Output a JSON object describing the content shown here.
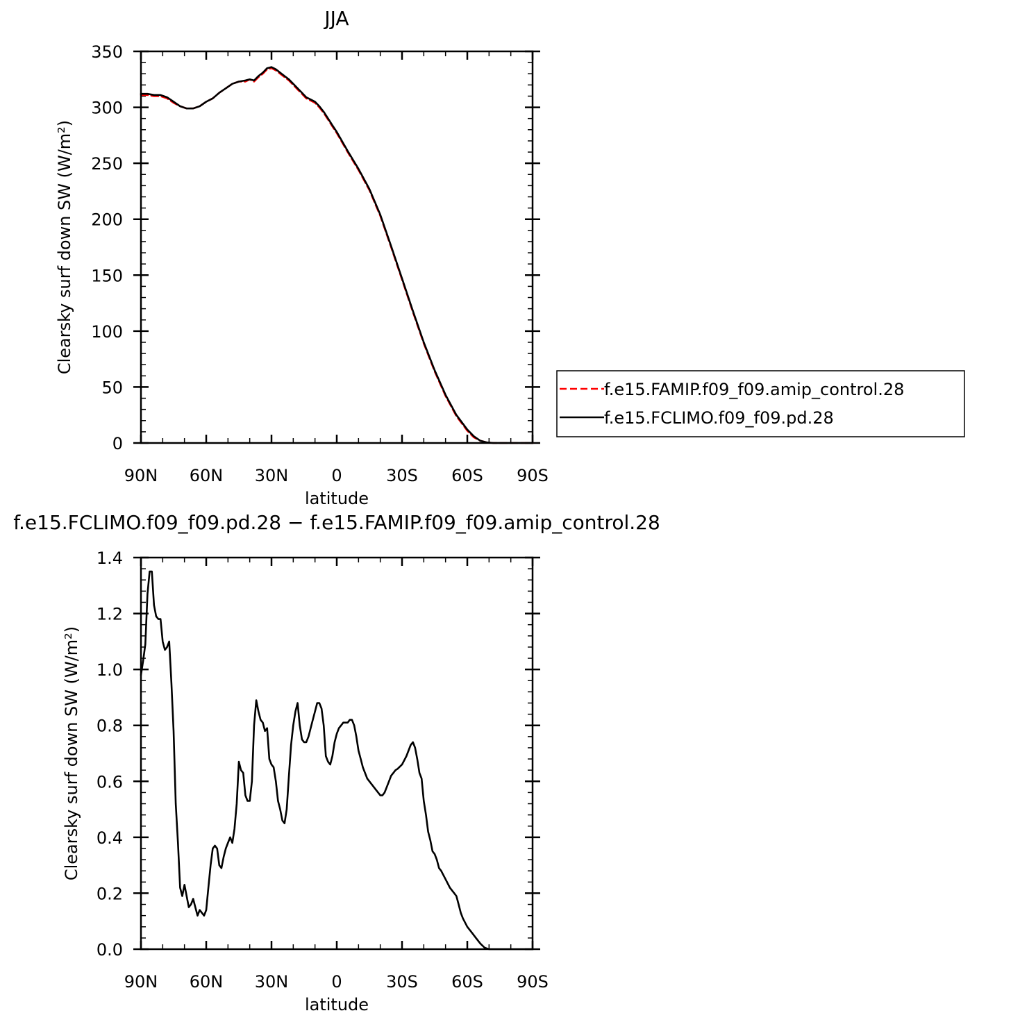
{
  "chart_data": [
    {
      "type": "line",
      "title": "JJA",
      "xlabel": "latitude",
      "ylabel": "Clearsky surf down SW (W/m²)",
      "xlim": [
        90,
        -90
      ],
      "ylim": [
        0,
        350
      ],
      "x_ticks": [
        {
          "value": 90,
          "label": "90N"
        },
        {
          "value": 60,
          "label": "60N"
        },
        {
          "value": 30,
          "label": "30N"
        },
        {
          "value": 0,
          "label": "0"
        },
        {
          "value": -30,
          "label": "30S"
        },
        {
          "value": -60,
          "label": "60S"
        },
        {
          "value": -90,
          "label": "90S"
        }
      ],
      "y_ticks": [
        {
          "value": 0,
          "label": "0"
        },
        {
          "value": 50,
          "label": "50"
        },
        {
          "value": 100,
          "label": "100"
        },
        {
          "value": 150,
          "label": "150"
        },
        {
          "value": 200,
          "label": "200"
        },
        {
          "value": 250,
          "label": "250"
        },
        {
          "value": 300,
          "label": "300"
        },
        {
          "value": 350,
          "label": "350"
        }
      ],
      "y_minor_step": 10,
      "x_minor_step": 10,
      "legend": "right",
      "series": [
        {
          "name": "f.e15.FAMIP.f09_f09.amip_control.28",
          "color": "#ff0000",
          "style": "dashed",
          "x": [
            90,
            87,
            84,
            81,
            78,
            75,
            72,
            69,
            66,
            63,
            60,
            57,
            54,
            51,
            48,
            45,
            42,
            40,
            38,
            36,
            34,
            32,
            30,
            28,
            26,
            24,
            22,
            20,
            18,
            16,
            14,
            12,
            10,
            8,
            6,
            4,
            2,
            0,
            -5,
            -10,
            -15,
            -20,
            -25,
            -30,
            -35,
            -40,
            -45,
            -50,
            -55,
            -60,
            -63,
            -66,
            -69,
            -72,
            -75,
            -78,
            -81,
            -84,
            -87,
            -90
          ],
          "y": [
            311,
            311,
            310,
            310,
            308,
            304,
            301,
            299,
            299,
            301,
            305,
            308,
            313,
            317,
            321,
            323,
            323,
            325,
            323,
            327,
            330,
            334,
            335,
            333,
            330,
            327,
            324,
            320,
            316,
            312,
            308,
            306,
            304,
            300,
            295,
            289,
            283,
            277,
            260,
            244,
            226,
            203,
            175,
            146,
            117,
            89,
            64,
            42,
            24,
            11,
            5,
            2,
            0.5,
            0,
            0,
            0,
            0,
            0,
            0,
            0
          ]
        },
        {
          "name": "f.e15.FCLIMO.f09_f09.pd.28",
          "color": "#000000",
          "style": "solid",
          "x": [
            90,
            87,
            84,
            81,
            78,
            75,
            72,
            69,
            66,
            63,
            60,
            57,
            54,
            51,
            48,
            45,
            42,
            40,
            38,
            36,
            34,
            32,
            30,
            28,
            26,
            24,
            22,
            20,
            18,
            16,
            14,
            12,
            10,
            8,
            6,
            4,
            2,
            0,
            -5,
            -10,
            -15,
            -20,
            -25,
            -30,
            -35,
            -40,
            -45,
            -50,
            -55,
            -60,
            -63,
            -66,
            -69,
            -72,
            -75,
            -78,
            -81,
            -84,
            -87,
            -90
          ],
          "y": [
            312,
            312,
            311,
            311,
            309,
            305,
            301,
            299,
            299,
            301,
            305,
            308,
            313,
            317,
            321,
            323,
            324,
            325,
            324,
            328,
            331,
            335,
            336,
            334,
            331,
            328,
            325,
            321,
            317,
            313,
            309,
            307,
            305,
            301,
            296,
            290,
            284,
            278,
            261,
            245,
            227,
            204,
            176,
            147,
            118,
            90,
            65,
            43,
            25,
            12,
            6,
            2,
            0.5,
            0,
            0,
            0,
            0,
            0,
            0,
            0
          ]
        }
      ]
    },
    {
      "type": "line",
      "title": "f.e15.FCLIMO.f09_f09.pd.28 − f.e15.FAMIP.f09_f09.amip_control.28",
      "xlabel": "latitude",
      "ylabel": "Clearsky surf down SW (W/m²)",
      "xlim": [
        90,
        -90
      ],
      "ylim": [
        0.0,
        1.4
      ],
      "x_ticks": [
        {
          "value": 90,
          "label": "90N"
        },
        {
          "value": 60,
          "label": "60N"
        },
        {
          "value": 30,
          "label": "30N"
        },
        {
          "value": 0,
          "label": "0"
        },
        {
          "value": -30,
          "label": "30S"
        },
        {
          "value": -60,
          "label": "60S"
        },
        {
          "value": -90,
          "label": "90S"
        }
      ],
      "y_ticks": [
        {
          "value": 0.0,
          "label": "0.0"
        },
        {
          "value": 0.2,
          "label": "0.2"
        },
        {
          "value": 0.4,
          "label": "0.4"
        },
        {
          "value": 0.6,
          "label": "0.6"
        },
        {
          "value": 0.8,
          "label": "0.8"
        },
        {
          "value": 1.0,
          "label": "1.0"
        },
        {
          "value": 1.2,
          "label": "1.2"
        },
        {
          "value": 1.4,
          "label": "1.4"
        }
      ],
      "y_minor_step": 0.04,
      "x_minor_step": 10,
      "series": [
        {
          "color": "#000000",
          "style": "solid",
          "x": [
            90,
            89,
            88,
            87,
            86,
            85.5,
            85,
            84,
            83,
            82,
            81,
            80,
            79,
            78,
            77,
            76,
            75,
            74,
            73,
            72,
            71,
            70,
            69,
            68,
            67,
            66,
            65,
            64,
            63,
            62,
            61,
            60,
            59,
            58,
            57,
            56,
            55,
            54,
            53,
            52,
            51,
            50,
            49,
            48,
            47,
            46,
            45,
            44,
            43,
            42,
            41,
            40,
            39,
            38,
            37,
            36,
            35,
            34,
            33,
            32,
            31,
            30,
            29,
            28,
            27,
            26,
            25,
            24,
            23,
            22,
            21,
            20,
            19,
            18,
            17,
            16,
            15,
            14,
            13,
            12,
            11,
            10,
            9,
            8,
            7,
            6,
            5,
            4,
            3,
            2,
            1,
            0,
            -1,
            -2,
            -3,
            -4,
            -5,
            -6,
            -7,
            -8,
            -9,
            -10,
            -11,
            -12,
            -14,
            -16,
            -18,
            -20,
            -21,
            -22,
            -23,
            -24,
            -25,
            -26,
            -27,
            -28,
            -30,
            -32,
            -34,
            -35,
            -36,
            -37,
            -38,
            -39,
            -40,
            -41,
            -42,
            -43,
            -44,
            -45,
            -46,
            -47,
            -48,
            -50,
            -52,
            -54,
            -55,
            -56,
            -57,
            -58,
            -60,
            -62,
            -64,
            -66,
            -68,
            -70,
            -72,
            -74,
            -76,
            -78,
            -80,
            -82,
            -84,
            -86,
            -88,
            -90
          ],
          "y": [
            0.98,
            1.03,
            1.09,
            1.27,
            1.35,
            1.35,
            1.35,
            1.23,
            1.19,
            1.18,
            1.18,
            1.1,
            1.07,
            1.08,
            1.1,
            0.95,
            0.78,
            0.52,
            0.38,
            0.22,
            0.19,
            0.23,
            0.19,
            0.15,
            0.16,
            0.18,
            0.15,
            0.12,
            0.14,
            0.13,
            0.12,
            0.14,
            0.22,
            0.3,
            0.36,
            0.37,
            0.36,
            0.3,
            0.29,
            0.33,
            0.36,
            0.38,
            0.4,
            0.38,
            0.43,
            0.52,
            0.67,
            0.64,
            0.63,
            0.55,
            0.53,
            0.53,
            0.6,
            0.8,
            0.89,
            0.85,
            0.82,
            0.81,
            0.78,
            0.79,
            0.68,
            0.66,
            0.65,
            0.6,
            0.53,
            0.5,
            0.46,
            0.45,
            0.5,
            0.62,
            0.73,
            0.8,
            0.85,
            0.88,
            0.8,
            0.75,
            0.74,
            0.74,
            0.76,
            0.79,
            0.82,
            0.85,
            0.88,
            0.88,
            0.86,
            0.8,
            0.69,
            0.67,
            0.66,
            0.69,
            0.74,
            0.77,
            0.79,
            0.8,
            0.81,
            0.81,
            0.81,
            0.82,
            0.82,
            0.8,
            0.76,
            0.71,
            0.68,
            0.65,
            0.61,
            0.59,
            0.57,
            0.55,
            0.55,
            0.56,
            0.58,
            0.6,
            0.62,
            0.63,
            0.64,
            0.645,
            0.66,
            0.69,
            0.73,
            0.74,
            0.72,
            0.68,
            0.63,
            0.61,
            0.53,
            0.48,
            0.42,
            0.39,
            0.35,
            0.34,
            0.32,
            0.29,
            0.28,
            0.25,
            0.22,
            0.2,
            0.19,
            0.16,
            0.13,
            0.11,
            0.08,
            0.06,
            0.04,
            0.02,
            0.005,
            0.0,
            0.0,
            0.0,
            0.0,
            0.0,
            0.0,
            0.0,
            0.0,
            0.0,
            0.0,
            0.0
          ]
        }
      ]
    }
  ]
}
